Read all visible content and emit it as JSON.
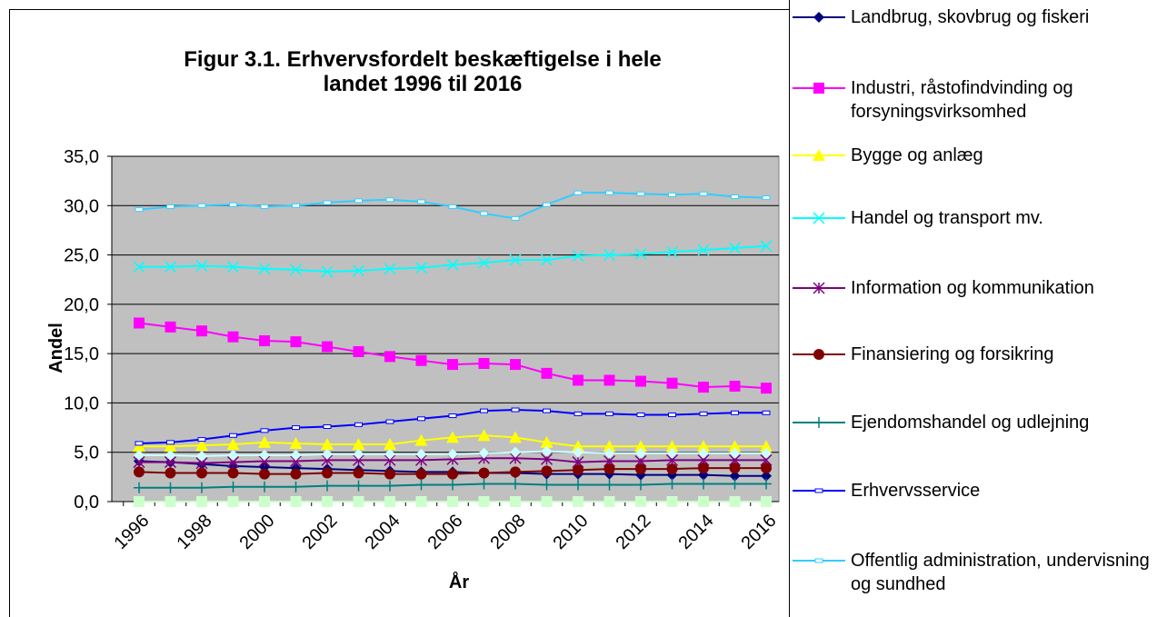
{
  "chart_data": {
    "type": "line",
    "title": "Figur 3.1. Erhvervsfordelt beskæftigelse i hele landet 1996 til 2016",
    "x_label": "År",
    "y_label": "Andel",
    "categories": [
      "1996",
      null,
      "1998",
      null,
      "2000",
      null,
      "2002",
      null,
      "2004",
      null,
      "2006",
      null,
      "2008",
      null,
      "2010",
      null,
      "2012",
      null,
      "2014",
      null,
      "2016"
    ],
    "ylim": [
      0,
      35
    ],
    "yticks": [
      {
        "value": 0,
        "label": "0,0"
      },
      {
        "value": 5,
        "label": "5,0"
      },
      {
        "value": 10,
        "label": "10,0"
      },
      {
        "value": 15,
        "label": "15,0"
      },
      {
        "value": 20,
        "label": "20,0"
      },
      {
        "value": 25,
        "label": "25,0"
      },
      {
        "value": 30,
        "label": "30,0"
      },
      {
        "value": 35,
        "label": "35,0"
      }
    ],
    "grid": true,
    "background": "#c0c0c0",
    "series": [
      {
        "name": "Landbrug, skovbrug og fiskeri",
        "color": "#000080",
        "marker": "diamond",
        "values": [
          4.1,
          4.0,
          3.8,
          3.6,
          3.5,
          3.4,
          3.3,
          3.2,
          3.1,
          3.0,
          3.0,
          2.9,
          2.9,
          2.8,
          2.8,
          2.8,
          2.7,
          2.7,
          2.7,
          2.6,
          2.6
        ]
      },
      {
        "name": "Industri, råstofindvinding og forsyningsvirksomhed",
        "color": "#ff00ff",
        "marker": "square",
        "values": [
          18.1,
          17.7,
          17.3,
          16.7,
          16.3,
          16.2,
          15.7,
          15.2,
          14.7,
          14.3,
          13.9,
          14.0,
          13.9,
          13.0,
          12.3,
          12.3,
          12.2,
          12.0,
          11.6,
          11.7,
          11.5
        ]
      },
      {
        "name": "Bygge og anlæg",
        "color": "#ffff00",
        "marker": "triangle",
        "values": [
          5.6,
          5.6,
          5.7,
          5.8,
          6.0,
          5.9,
          5.8,
          5.8,
          5.8,
          6.2,
          6.5,
          6.7,
          6.5,
          6.0,
          5.6,
          5.6,
          5.6,
          5.6,
          5.6,
          5.6,
          5.6
        ]
      },
      {
        "name": "Handel og transport mv.",
        "color": "#00ffff",
        "marker": "x",
        "values": [
          23.8,
          23.8,
          23.9,
          23.8,
          23.6,
          23.5,
          23.3,
          23.4,
          23.6,
          23.7,
          24.0,
          24.2,
          24.5,
          24.5,
          24.9,
          25.0,
          25.1,
          25.3,
          25.5,
          25.7,
          25.9
        ]
      },
      {
        "name": "Information og kommunikation",
        "color": "#800080",
        "marker": "asterisk",
        "values": [
          4.0,
          4.0,
          3.9,
          4.0,
          4.1,
          4.1,
          4.2,
          4.2,
          4.2,
          4.2,
          4.3,
          4.4,
          4.4,
          4.3,
          4.0,
          4.1,
          4.1,
          4.2,
          4.2,
          4.2,
          4.2
        ]
      },
      {
        "name": "Finansiering og forsikring",
        "color": "#800000",
        "marker": "circle",
        "values": [
          3.0,
          2.9,
          2.9,
          2.9,
          2.8,
          2.8,
          2.9,
          2.9,
          2.8,
          2.8,
          2.8,
          2.9,
          3.0,
          3.1,
          3.2,
          3.3,
          3.3,
          3.3,
          3.4,
          3.4,
          3.4
        ]
      },
      {
        "name": "Ejendomshandel og udlejning",
        "color": "#008080",
        "marker": "plus",
        "values": [
          1.4,
          1.4,
          1.4,
          1.5,
          1.5,
          1.5,
          1.6,
          1.6,
          1.6,
          1.7,
          1.7,
          1.8,
          1.8,
          1.7,
          1.7,
          1.7,
          1.7,
          1.8,
          1.8,
          1.8,
          1.8
        ]
      },
      {
        "name": "Erhvervsservice",
        "color": "#0000ff",
        "marker": "dash",
        "values": [
          5.9,
          6.0,
          6.3,
          6.7,
          7.2,
          7.5,
          7.6,
          7.8,
          8.1,
          8.4,
          8.7,
          9.2,
          9.3,
          9.2,
          8.9,
          8.9,
          8.8,
          8.8,
          8.9,
          9.0,
          9.0
        ]
      },
      {
        "name": "Offentlig administration, undervisning og sundhed",
        "color": "#33ccff",
        "marker": "dash",
        "values": [
          29.6,
          29.9,
          30.0,
          30.1,
          29.9,
          30.0,
          30.3,
          30.5,
          30.6,
          30.4,
          29.9,
          29.2,
          28.7,
          30.1,
          31.3,
          31.3,
          31.2,
          31.1,
          31.2,
          30.9,
          30.8
        ]
      },
      {
        "color": "#ccffff",
        "marker": "diamond",
        "values": [
          4.7,
          4.7,
          4.6,
          4.7,
          4.7,
          4.7,
          4.8,
          4.8,
          4.8,
          4.8,
          4.8,
          4.9,
          5.0,
          5.1,
          5.0,
          4.9,
          4.9,
          4.9,
          4.9,
          4.9,
          4.9
        ]
      },
      {
        "color": "#ccffcc",
        "marker": "square",
        "values": [
          0,
          0,
          0,
          0,
          0,
          0,
          0,
          0,
          0,
          0,
          0,
          0,
          0,
          0,
          0,
          0,
          0,
          0,
          0,
          0,
          0
        ]
      }
    ]
  }
}
